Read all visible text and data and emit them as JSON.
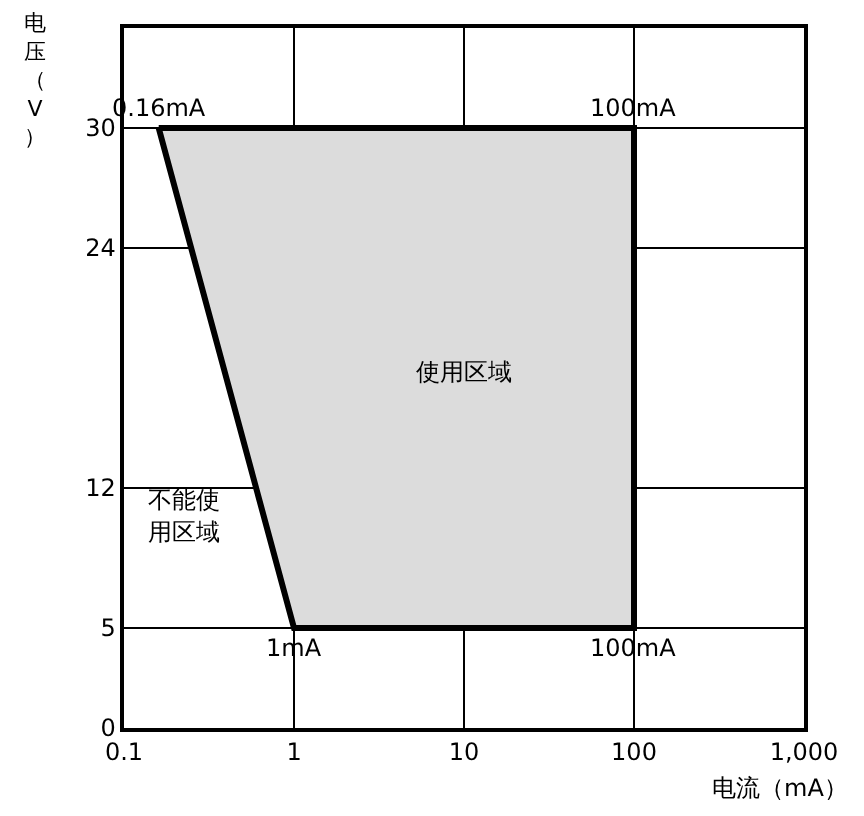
{
  "chart_data": {
    "type": "area",
    "xlabel": "电流（mA）",
    "ylabel": "电压（V）",
    "log": "x",
    "grid": true,
    "xlim": [
      0.1,
      1000
    ],
    "xticks": [
      0.1,
      1,
      10,
      100,
      {
        "value": 1000,
        "label": "1,000"
      }
    ],
    "ylim": [
      0,
      35
    ],
    "yticks": [
      0,
      5,
      12,
      24,
      30
    ],
    "series": [
      {
        "color": "#dcdcdc",
        "x": [
          0.16,
          100,
          100,
          1,
          0.16
        ],
        "values": [
          30,
          30,
          5,
          5,
          30
        ]
      }
    ],
    "annotations": [
      {
        "text": "0.16mA",
        "x": 0.16,
        "y": 30
      },
      {
        "text": "100mA",
        "x": 100,
        "y": 30
      },
      {
        "text": "1mA",
        "x": 1,
        "y": 5
      },
      {
        "text": "100mA",
        "x": 100,
        "y": 5
      },
      "使用区域",
      "不能使",
      "用区域"
    ]
  }
}
